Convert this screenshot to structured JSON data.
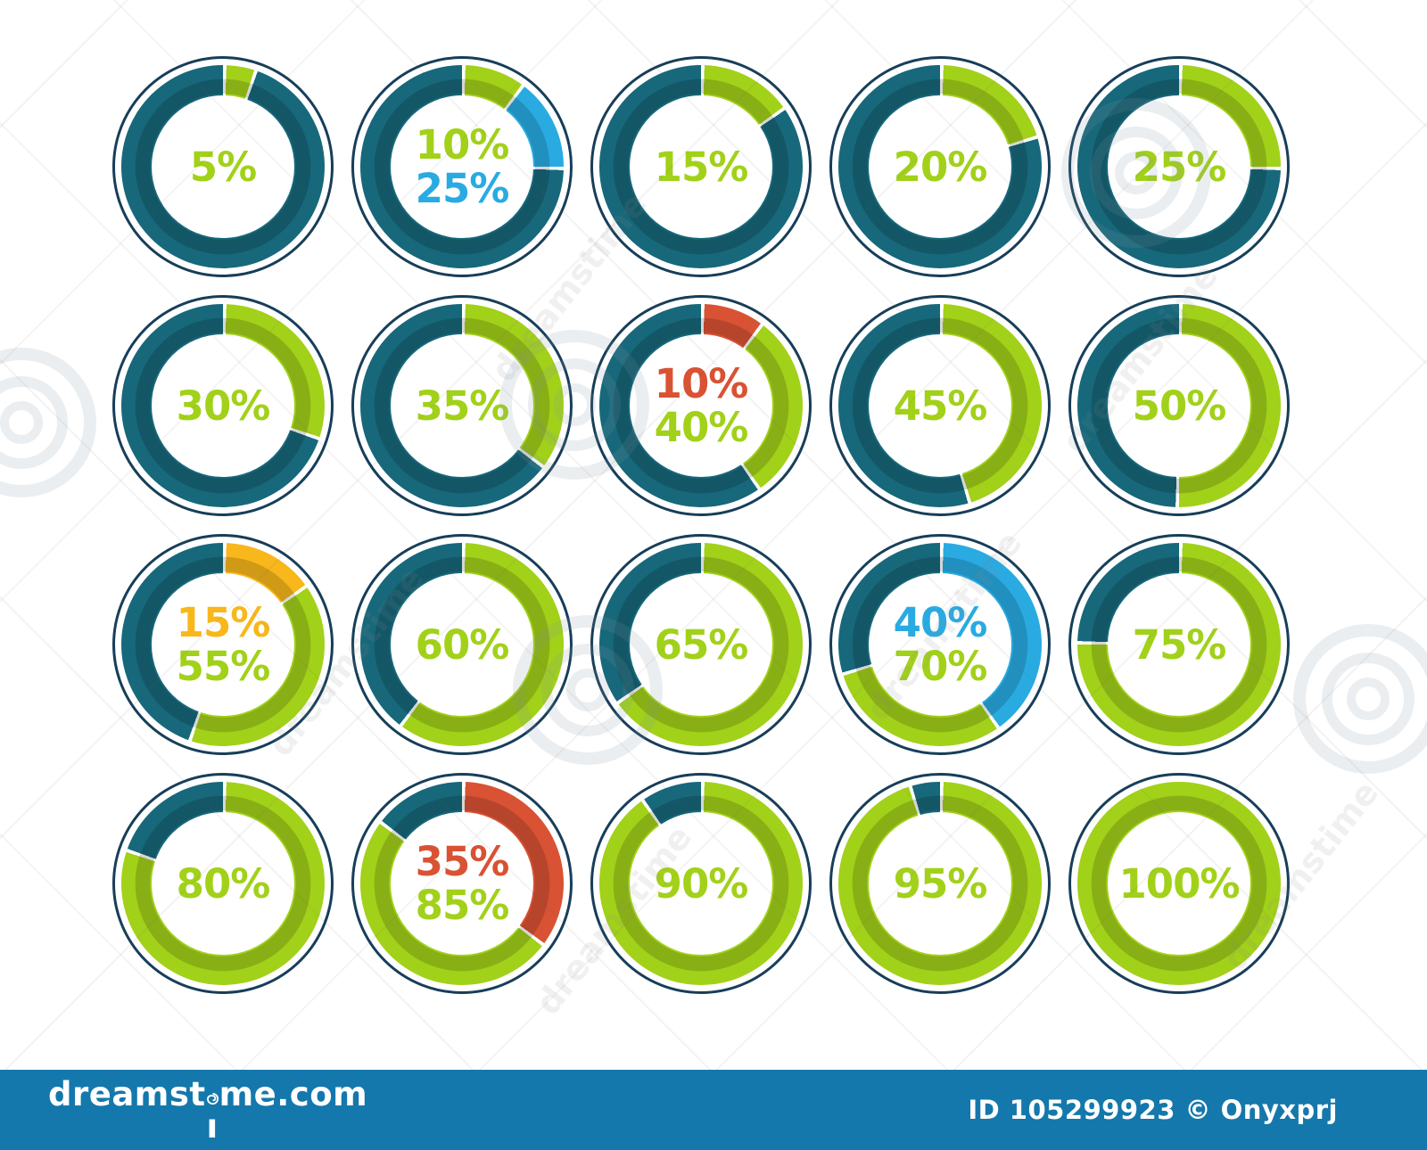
{
  "palette": {
    "teal": "#17687B",
    "green": "#A2D119",
    "blue": "#29ABE2",
    "red": "#D95233",
    "yellow": "#F8B71B",
    "outline": "#173E59",
    "footer_bg": "#1478AC",
    "footer_text": "#FFFFFF"
  },
  "chart_data": {
    "type": "pie",
    "subtype": "donut-grid",
    "unit": "percent",
    "grid": {
      "rows": 4,
      "cols": 5
    },
    "charts": [
      {
        "center_labels": [
          {
            "text": "5%",
            "color": "green"
          }
        ],
        "segments": [
          {
            "color": "green",
            "value": 5
          },
          {
            "color": "teal",
            "value": 95
          }
        ]
      },
      {
        "center_labels": [
          {
            "text": "10%",
            "color": "green"
          },
          {
            "text": "25%",
            "color": "blue"
          }
        ],
        "segments": [
          {
            "color": "green",
            "value": 10
          },
          {
            "color": "blue",
            "value": 15
          },
          {
            "color": "teal",
            "value": 75
          }
        ]
      },
      {
        "center_labels": [
          {
            "text": "15%",
            "color": "green"
          }
        ],
        "segments": [
          {
            "color": "green",
            "value": 15
          },
          {
            "color": "teal",
            "value": 85
          }
        ]
      },
      {
        "center_labels": [
          {
            "text": "20%",
            "color": "green"
          }
        ],
        "segments": [
          {
            "color": "green",
            "value": 20
          },
          {
            "color": "teal",
            "value": 80
          }
        ]
      },
      {
        "center_labels": [
          {
            "text": "25%",
            "color": "green"
          }
        ],
        "segments": [
          {
            "color": "green",
            "value": 25
          },
          {
            "color": "teal",
            "value": 75
          }
        ]
      },
      {
        "center_labels": [
          {
            "text": "30%",
            "color": "green"
          }
        ],
        "segments": [
          {
            "color": "green",
            "value": 30
          },
          {
            "color": "teal",
            "value": 70
          }
        ]
      },
      {
        "center_labels": [
          {
            "text": "35%",
            "color": "green"
          }
        ],
        "segments": [
          {
            "color": "green",
            "value": 35
          },
          {
            "color": "teal",
            "value": 65
          }
        ]
      },
      {
        "center_labels": [
          {
            "text": "10%",
            "color": "red"
          },
          {
            "text": "40%",
            "color": "green"
          }
        ],
        "segments": [
          {
            "color": "red",
            "value": 10
          },
          {
            "color": "green",
            "value": 30
          },
          {
            "color": "teal",
            "value": 60
          }
        ]
      },
      {
        "center_labels": [
          {
            "text": "45%",
            "color": "green"
          }
        ],
        "segments": [
          {
            "color": "green",
            "value": 45
          },
          {
            "color": "teal",
            "value": 55
          }
        ]
      },
      {
        "center_labels": [
          {
            "text": "50%",
            "color": "green"
          }
        ],
        "segments": [
          {
            "color": "green",
            "value": 50
          },
          {
            "color": "teal",
            "value": 50
          }
        ]
      },
      {
        "center_labels": [
          {
            "text": "15%",
            "color": "yellow"
          },
          {
            "text": "55%",
            "color": "green"
          }
        ],
        "segments": [
          {
            "color": "yellow",
            "value": 15
          },
          {
            "color": "green",
            "value": 40
          },
          {
            "color": "teal",
            "value": 45
          }
        ]
      },
      {
        "center_labels": [
          {
            "text": "60%",
            "color": "green"
          }
        ],
        "segments": [
          {
            "color": "green",
            "value": 60
          },
          {
            "color": "teal",
            "value": 40
          }
        ]
      },
      {
        "center_labels": [
          {
            "text": "65%",
            "color": "green"
          }
        ],
        "segments": [
          {
            "color": "green",
            "value": 65
          },
          {
            "color": "teal",
            "value": 35
          }
        ]
      },
      {
        "center_labels": [
          {
            "text": "40%",
            "color": "blue"
          },
          {
            "text": "70%",
            "color": "green"
          }
        ],
        "segments": [
          {
            "color": "blue",
            "value": 40
          },
          {
            "color": "green",
            "value": 30
          },
          {
            "color": "teal",
            "value": 30
          }
        ]
      },
      {
        "center_labels": [
          {
            "text": "75%",
            "color": "green"
          }
        ],
        "segments": [
          {
            "color": "green",
            "value": 75
          },
          {
            "color": "teal",
            "value": 25
          }
        ]
      },
      {
        "center_labels": [
          {
            "text": "80%",
            "color": "green"
          }
        ],
        "segments": [
          {
            "color": "green",
            "value": 80
          },
          {
            "color": "teal",
            "value": 20
          }
        ]
      },
      {
        "center_labels": [
          {
            "text": "35%",
            "color": "red"
          },
          {
            "text": "85%",
            "color": "green"
          }
        ],
        "segments": [
          {
            "color": "red",
            "value": 35
          },
          {
            "color": "green",
            "value": 50
          },
          {
            "color": "teal",
            "value": 15
          }
        ]
      },
      {
        "center_labels": [
          {
            "text": "90%",
            "color": "green"
          }
        ],
        "segments": [
          {
            "color": "green",
            "value": 90
          },
          {
            "color": "teal",
            "value": 10
          }
        ]
      },
      {
        "center_labels": [
          {
            "text": "95%",
            "color": "green"
          }
        ],
        "segments": [
          {
            "color": "green",
            "value": 95
          },
          {
            "color": "teal",
            "value": 5
          }
        ]
      },
      {
        "center_labels": [
          {
            "text": "100%",
            "color": "green"
          }
        ],
        "segments": [
          {
            "color": "green",
            "value": 100
          }
        ]
      }
    ]
  },
  "watermark": {
    "text": "dreamstime"
  },
  "footer": {
    "logo": "dreamstime.com",
    "id_text": "ID 105299923 © Onyxprj"
  }
}
